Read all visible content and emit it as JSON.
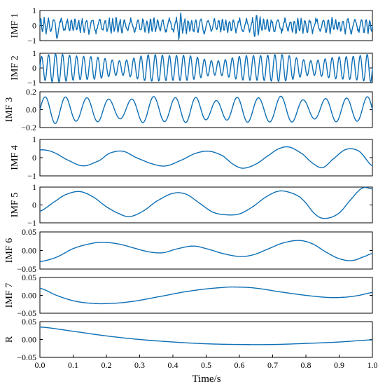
{
  "chart_data": {
    "type": "line",
    "xlabel": "Time/s",
    "xlim": [
      0,
      1.0
    ],
    "xticks": [
      "0.0",
      "0.1",
      "0.2",
      "0.3",
      "0.4",
      "0.5",
      "0.6",
      "0.7",
      "0.8",
      "0.9",
      "1.0"
    ],
    "line_color": "#0e6fb5",
    "panels": [
      {
        "name": "IMF 1",
        "ylabel": "IMF 1",
        "ylim": [
          -1,
          1
        ],
        "yticks": [
          "1",
          "0",
          "−1"
        ],
        "ytick_values": [
          1,
          0,
          -1
        ],
        "model": {
          "kind": "noise_osc",
          "freq": 70,
          "amp": 0.45,
          "bursts": [
            0.05,
            0.42,
            0.65
          ],
          "peak": 1.0
        }
      },
      {
        "name": "IMF 2",
        "ylabel": "IMF 2",
        "ylim": [
          -1,
          1
        ],
        "yticks": [
          "1",
          "0",
          "−1"
        ],
        "ytick_values": [
          1,
          0,
          -1
        ],
        "model": {
          "kind": "am_sine",
          "freq": 47,
          "amp": 0.75,
          "mod": 0.25
        }
      },
      {
        "name": "IMF 3",
        "ylabel": "IMF 3",
        "ylim": [
          -0.2,
          0.2
        ],
        "yticks": [
          "0.2",
          "0.0",
          "−0.2"
        ],
        "ytick_values": [
          0.2,
          0,
          -0.2
        ],
        "model": {
          "kind": "am_sine",
          "freq": 15.5,
          "amp": 0.13,
          "mod": 0.12
        }
      },
      {
        "name": "IMF 4",
        "ylabel": "IMF 4",
        "ylim": [
          -1,
          1
        ],
        "yticks": [
          "1",
          "0",
          "−1"
        ],
        "ytick_values": [
          1,
          0,
          -1
        ],
        "x": [
          0,
          0.01,
          0.04,
          0.08,
          0.13,
          0.18,
          0.21,
          0.25,
          0.29,
          0.34,
          0.38,
          0.43,
          0.47,
          0.51,
          0.55,
          0.58,
          0.61,
          0.65,
          0.69,
          0.72,
          0.75,
          0.79,
          0.82,
          0.85,
          0.88,
          0.92,
          0.96,
          1.0
        ],
        "y": [
          0.42,
          0.43,
          0.3,
          -0.1,
          -0.45,
          -0.15,
          0.25,
          0.35,
          0.0,
          -0.35,
          -0.45,
          -0.1,
          0.25,
          0.35,
          0.1,
          -0.35,
          -0.58,
          -0.35,
          0.15,
          0.5,
          0.58,
          0.2,
          -0.3,
          -0.55,
          -0.1,
          0.45,
          0.35,
          -0.45
        ]
      },
      {
        "name": "IMF 5",
        "ylabel": "IMF 5",
        "ylim": [
          -1,
          1
        ],
        "yticks": [
          "1",
          "0",
          "−1"
        ],
        "ytick_values": [
          1,
          0,
          -1
        ],
        "x": [
          0,
          0.05,
          0.08,
          0.12,
          0.16,
          0.2,
          0.24,
          0.27,
          0.31,
          0.35,
          0.4,
          0.44,
          0.48,
          0.52,
          0.56,
          0.6,
          0.64,
          0.68,
          0.72,
          0.76,
          0.79,
          0.83,
          0.86,
          0.9,
          0.94,
          0.97,
          1.0
        ],
        "y": [
          -0.35,
          0.25,
          0.6,
          0.75,
          0.45,
          -0.1,
          -0.5,
          -0.65,
          -0.35,
          0.2,
          0.65,
          0.6,
          0.1,
          -0.4,
          -0.55,
          -0.5,
          -0.1,
          0.45,
          0.78,
          0.65,
          0.3,
          -0.55,
          -0.75,
          -0.45,
          0.4,
          0.95,
          0.9
        ]
      },
      {
        "name": "IMF 6",
        "ylabel": "IMF 6",
        "ylim": [
          -0.05,
          0.05
        ],
        "yticks": [
          "0.05",
          "0.00",
          "−0.05"
        ],
        "ytick_values": [
          0.05,
          0,
          -0.05
        ],
        "x": [
          0,
          0.05,
          0.1,
          0.15,
          0.19,
          0.24,
          0.29,
          0.33,
          0.37,
          0.41,
          0.46,
          0.5,
          0.55,
          0.6,
          0.64,
          0.68,
          0.73,
          0.78,
          0.82,
          0.86,
          0.9,
          0.94,
          0.98,
          1.0
        ],
        "y": [
          -0.03,
          -0.018,
          0.005,
          0.018,
          0.022,
          0.017,
          0.005,
          -0.004,
          -0.006,
          0.004,
          0.012,
          0.005,
          -0.008,
          -0.016,
          -0.012,
          0.002,
          0.02,
          0.027,
          0.018,
          -0.004,
          -0.022,
          -0.027,
          -0.015,
          -0.008
        ]
      },
      {
        "name": "IMF 7",
        "ylabel": "IMF 7",
        "ylim": [
          -0.05,
          0.05
        ],
        "yticks": [
          "0.05",
          "0.00",
          "−0.05"
        ],
        "ytick_values": [
          0.05,
          0,
          -0.05
        ],
        "x": [
          0,
          0.05,
          0.1,
          0.15,
          0.2,
          0.27,
          0.35,
          0.45,
          0.55,
          0.6,
          0.65,
          0.72,
          0.8,
          0.87,
          0.92,
          0.96,
          1.0
        ],
        "y": [
          0.02,
          0.0,
          -0.015,
          -0.022,
          -0.023,
          -0.018,
          -0.005,
          0.012,
          0.022,
          0.023,
          0.02,
          0.01,
          0.0,
          -0.006,
          -0.005,
          0.0,
          0.008
        ]
      },
      {
        "name": "R",
        "ylabel": "R",
        "ylim": [
          -0.05,
          0.05
        ],
        "yticks": [
          "0.05",
          "0.00",
          "−0.05"
        ],
        "ytick_values": [
          0.05,
          0,
          -0.05
        ],
        "x": [
          0,
          0.1,
          0.2,
          0.3,
          0.4,
          0.5,
          0.6,
          0.7,
          0.8,
          0.9,
          1.0
        ],
        "y": [
          0.035,
          0.023,
          0.01,
          0.0,
          -0.007,
          -0.012,
          -0.014,
          -0.014,
          -0.011,
          -0.007,
          -0.001
        ]
      }
    ]
  }
}
